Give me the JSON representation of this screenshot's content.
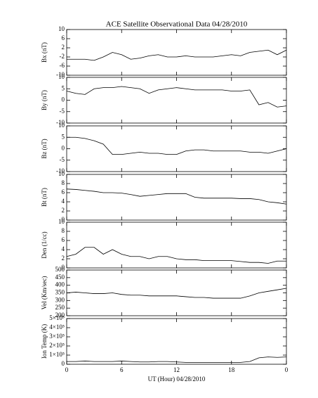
{
  "chart_data": [
    {
      "type": "line",
      "title": "ACE Satellite Observational Data   04/28/2010",
      "ylabel": "Bx (nT)",
      "color": "#000000",
      "x": [
        0,
        1,
        2,
        3,
        4,
        5,
        6,
        7,
        8,
        9,
        10,
        11,
        12,
        13,
        14,
        15,
        16,
        17,
        18,
        19,
        20,
        21,
        22,
        23,
        24
      ],
      "values": [
        -3,
        -3,
        -3,
        -3.5,
        -2,
        0,
        -1,
        -3,
        -2.5,
        -1.5,
        -1,
        -2,
        -2,
        -1.5,
        -2,
        -2,
        -2,
        -1.5,
        -1,
        -1.5,
        0,
        0.5,
        1,
        -1,
        1
      ],
      "xlim": [
        0,
        24
      ],
      "xticks": [
        0,
        6,
        12,
        18,
        {
          "value": 24,
          "label": "0"
        }
      ],
      "ylim": [
        -10,
        10
      ],
      "yticks": [
        -10,
        -6,
        -2,
        2,
        6,
        10
      ]
    },
    {
      "type": "line",
      "ylabel": "By (nT)",
      "color": "#000000",
      "x": [
        0,
        1,
        2,
        3,
        4,
        5,
        6,
        7,
        8,
        9,
        10,
        11,
        12,
        13,
        14,
        15,
        16,
        17,
        18,
        19,
        20,
        21,
        22,
        23,
        24
      ],
      "values": [
        4,
        3,
        2.5,
        5,
        5.5,
        5.5,
        6,
        5.5,
        5,
        3,
        4.5,
        5,
        5.5,
        5,
        4.5,
        4.5,
        4.5,
        4.5,
        4,
        4,
        4.5,
        -2,
        -1,
        -3,
        -2.5
      ],
      "xlim": [
        0,
        24
      ],
      "xticks": [
        0,
        6,
        12,
        18,
        {
          "value": 24,
          "label": "0"
        }
      ],
      "ylim": [
        -10,
        10
      ],
      "yticks": [
        -10,
        -5,
        0,
        5,
        10
      ]
    },
    {
      "type": "line",
      "ylabel": "Bz (nT)",
      "color": "#000000",
      "x": [
        0,
        1,
        2,
        3,
        4,
        5,
        6,
        7,
        8,
        9,
        10,
        11,
        12,
        13,
        14,
        15,
        16,
        17,
        18,
        19,
        20,
        21,
        22,
        23,
        24
      ],
      "values": [
        5,
        5,
        4.5,
        3.5,
        2,
        -2.5,
        -2.5,
        -2,
        -1.5,
        -2,
        -2,
        -2.5,
        -2.5,
        -1,
        -0.5,
        -0.5,
        -1,
        -1,
        -1,
        -1,
        -1.5,
        -1.5,
        -2,
        -1,
        0
      ],
      "xlim": [
        0,
        24
      ],
      "xticks": [
        0,
        6,
        12,
        18,
        {
          "value": 24,
          "label": "0"
        }
      ],
      "ylim": [
        -10,
        10
      ],
      "yticks": [
        -10,
        -5,
        0,
        5,
        10
      ]
    },
    {
      "type": "line",
      "ylabel": "Bt (nT)",
      "color": "#000000",
      "x": [
        0,
        1,
        2,
        3,
        4,
        5,
        6,
        7,
        8,
        9,
        10,
        11,
        12,
        13,
        14,
        15,
        16,
        17,
        18,
        19,
        20,
        21,
        22,
        23,
        24
      ],
      "values": [
        6.8,
        6.7,
        6.5,
        6.3,
        6,
        6,
        5.9,
        5.6,
        5.2,
        5.4,
        5.6,
        5.8,
        5.8,
        5.8,
        5,
        4.8,
        4.8,
        4.8,
        4.8,
        4.7,
        4.7,
        4.5,
        4,
        3.8,
        3.5
      ],
      "xlim": [
        0,
        24
      ],
      "xticks": [
        0,
        6,
        12,
        18,
        {
          "value": 24,
          "label": "0"
        }
      ],
      "ylim": [
        0,
        10
      ],
      "yticks": [
        0,
        2,
        4,
        6,
        8,
        10
      ]
    },
    {
      "type": "line",
      "ylabel": "Den (1/cc)",
      "color": "#000000",
      "x": [
        0,
        1,
        2,
        3,
        4,
        5,
        6,
        7,
        8,
        9,
        10,
        11,
        12,
        13,
        14,
        15,
        16,
        17,
        18,
        19,
        20,
        21,
        22,
        23,
        24
      ],
      "values": [
        2.5,
        3,
        4.5,
        4.5,
        3,
        4,
        3,
        2.5,
        2.5,
        2,
        2.5,
        2.5,
        2,
        1.8,
        1.8,
        1.6,
        1.6,
        1.6,
        1.6,
        1.4,
        1.2,
        1.2,
        1,
        1.5,
        1.5
      ],
      "xlim": [
        0,
        24
      ],
      "xticks": [
        0,
        6,
        12,
        18,
        {
          "value": 24,
          "label": "0"
        }
      ],
      "ylim": [
        0,
        10
      ],
      "yticks": [
        0,
        2,
        4,
        6,
        8,
        10
      ]
    },
    {
      "type": "line",
      "ylabel": "Vel (Km/sec)",
      "color": "#000000",
      "x": [
        0,
        1,
        2,
        3,
        4,
        5,
        6,
        7,
        8,
        9,
        10,
        11,
        12,
        13,
        14,
        15,
        16,
        17,
        18,
        19,
        20,
        21,
        22,
        23,
        24
      ],
      "values": [
        350,
        355,
        350,
        345,
        345,
        350,
        340,
        335,
        335,
        330,
        330,
        330,
        330,
        325,
        320,
        320,
        315,
        315,
        315,
        315,
        330,
        350,
        360,
        370,
        380
      ],
      "xlim": [
        0,
        24
      ],
      "xticks": [
        0,
        6,
        12,
        18,
        {
          "value": 24,
          "label": "0"
        }
      ],
      "ylim": [
        200,
        500
      ],
      "yticks": [
        200,
        250,
        300,
        350,
        400,
        450,
        500
      ]
    },
    {
      "type": "line",
      "ylabel": "Ion Temp (K)",
      "xlabel": "UT (Hour)  04/28/2010",
      "color": "#000000",
      "x": [
        0,
        1,
        2,
        3,
        4,
        5,
        6,
        7,
        8,
        9,
        10,
        11,
        12,
        13,
        14,
        15,
        16,
        17,
        18,
        19,
        20,
        21,
        22,
        23,
        24
      ],
      "values": [
        30000,
        30000,
        35000,
        30000,
        30000,
        30000,
        35000,
        30000,
        25000,
        25000,
        30000,
        30000,
        25000,
        20000,
        20000,
        20000,
        20000,
        20000,
        20000,
        20000,
        30000,
        70000,
        80000,
        75000,
        80000
      ],
      "xlim": [
        0,
        24
      ],
      "xticks": [
        0,
        6,
        12,
        18,
        {
          "value": 24,
          "label": "0"
        }
      ],
      "ylim": [
        0,
        500000
      ],
      "yticks": [
        0,
        {
          "value": 100000,
          "label": "1×10⁵"
        },
        {
          "value": 200000,
          "label": "2×10⁵"
        },
        {
          "value": 300000,
          "label": "3×10⁵"
        },
        {
          "value": 400000,
          "label": "4×10⁵"
        },
        {
          "value": 500000,
          "label": "5×10⁵"
        }
      ]
    }
  ]
}
